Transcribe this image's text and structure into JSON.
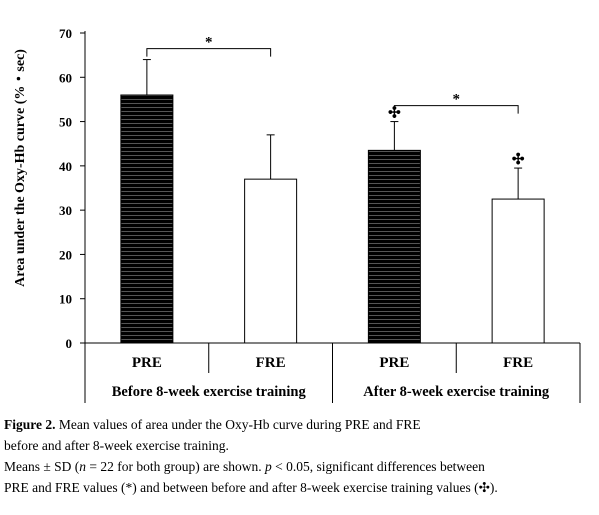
{
  "chart_data": {
    "type": "bar",
    "title": "",
    "ylabel": "Area under the Oxy-Hb curve (%・sec)",
    "xlabel": "",
    "ylim": [
      0,
      70
    ],
    "yticks": [
      0,
      10,
      20,
      30,
      40,
      50,
      60,
      70
    ],
    "grid": false,
    "legend": "none",
    "categories": [
      "PRE",
      "FRE",
      "PRE",
      "FRE"
    ],
    "groups": [
      {
        "label": "Before 8-week exercise training",
        "categories": [
          0,
          1
        ]
      },
      {
        "label": "After 8-week exercise training",
        "categories": [
          2,
          3
        ]
      }
    ],
    "values": [
      56.0,
      37.0,
      43.5,
      32.5
    ],
    "sd": [
      8.0,
      10.0,
      6.5,
      7.0
    ],
    "bar_styles": [
      "striped",
      "white",
      "striped",
      "white"
    ],
    "colors": {
      "striped_fill": "#000000",
      "white_fill": "#ffffff",
      "stroke": "#000000"
    },
    "significance_brackets": [
      {
        "from": 0,
        "to": 1,
        "label": "*"
      },
      {
        "from": 2,
        "to": 3,
        "label": "*"
      }
    ],
    "markers": [
      {
        "category": 2,
        "label": "✣"
      },
      {
        "category": 3,
        "label": "✣"
      }
    ]
  },
  "caption": {
    "figure_label": "Figure 2.",
    "line1_rest": " Mean values of area under the Oxy-Hb curve during PRE and FRE",
    "line2": "before and after 8-week exercise training.",
    "line3_a": "Means ± SD (",
    "line3_n": "n",
    "line3_b": " = 22 for both group) are shown. ",
    "line3_p": "p",
    "line3_c": " < 0.05, significant differences between",
    "line4": "PRE and FRE values (*) and between before and after 8-week exercise training values (✣)."
  }
}
